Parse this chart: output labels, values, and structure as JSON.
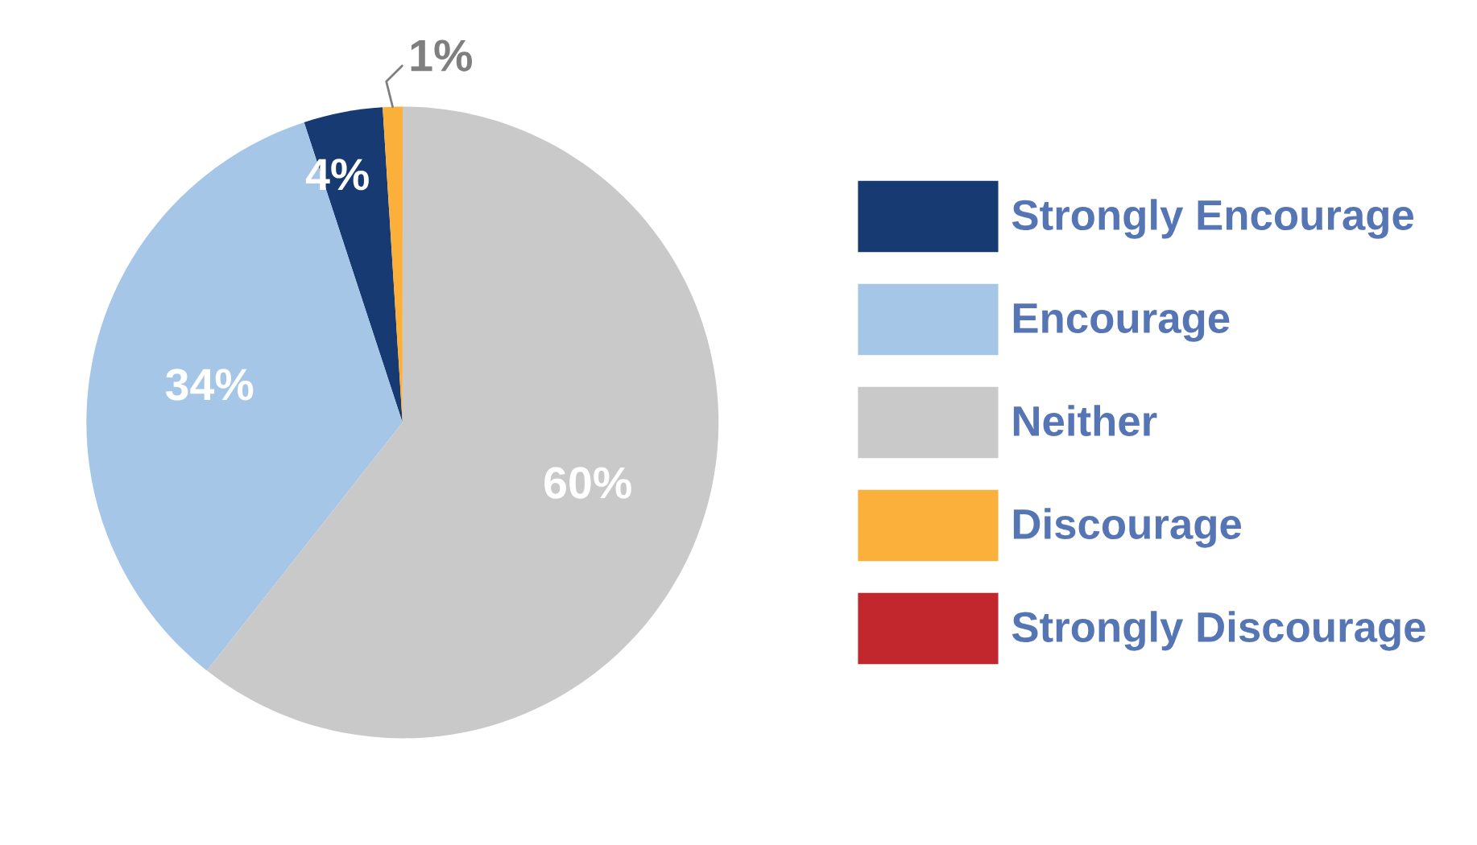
{
  "chart_data": {
    "type": "pie",
    "categories": [
      "Strongly Encourage",
      "Encourage",
      "Neither",
      "Discourage",
      "Strongly Discourage"
    ],
    "values": [
      4,
      34,
      60,
      1,
      0
    ],
    "colors": [
      "#173a72",
      "#a6c6e8",
      "#c9c9c9",
      "#fbb03b",
      "#c1272d"
    ],
    "value_labels": [
      "4%",
      "34%",
      "60%",
      "1%",
      null
    ],
    "legend": "right"
  }
}
